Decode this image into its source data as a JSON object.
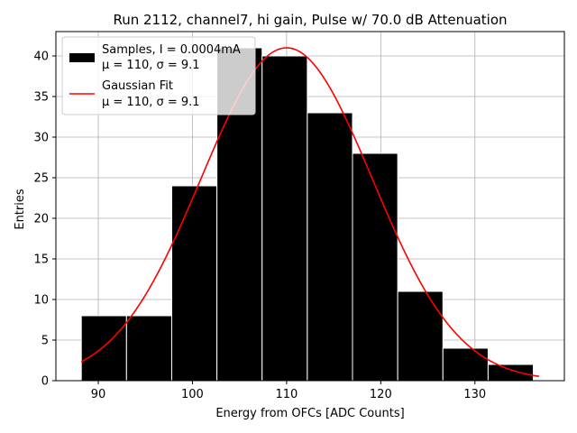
{
  "chart_data": {
    "type": "bar",
    "title": "Run 2112, channel7, hi gain, Pulse w/ 70.0 dB Attenuation",
    "xlabel": "Energy from OFCs [ADC Counts]",
    "ylabel": "Entries",
    "xlim": [
      85.5,
      139.5
    ],
    "ylim": [
      0,
      43
    ],
    "x_ticks": [
      90,
      100,
      110,
      120,
      130
    ],
    "y_ticks": [
      0,
      5,
      10,
      15,
      20,
      25,
      30,
      35,
      40
    ],
    "grid": true,
    "legend_position": "top-left",
    "bin_edges": [
      88.2,
      93.0,
      97.8,
      102.6,
      107.4,
      112.2,
      117.0,
      121.8,
      126.6,
      131.4,
      136.2
    ],
    "bin_width": 4.8,
    "values": [
      8,
      8,
      24,
      41,
      40,
      33,
      28,
      11,
      4,
      2
    ],
    "series": [
      {
        "name": "Samples, I = 0.0004mA",
        "name_line2": "μ = 110, σ = 9.1",
        "kind": "histogram",
        "color": "#000000"
      },
      {
        "name": "Gaussian Fit",
        "name_line2": "μ = 110, σ = 9.1",
        "kind": "line",
        "color": "#ff0000",
        "mu": 110,
        "sigma": 9.1,
        "amplitude": 41,
        "x_range": [
          88.2,
          136.8
        ]
      }
    ]
  }
}
